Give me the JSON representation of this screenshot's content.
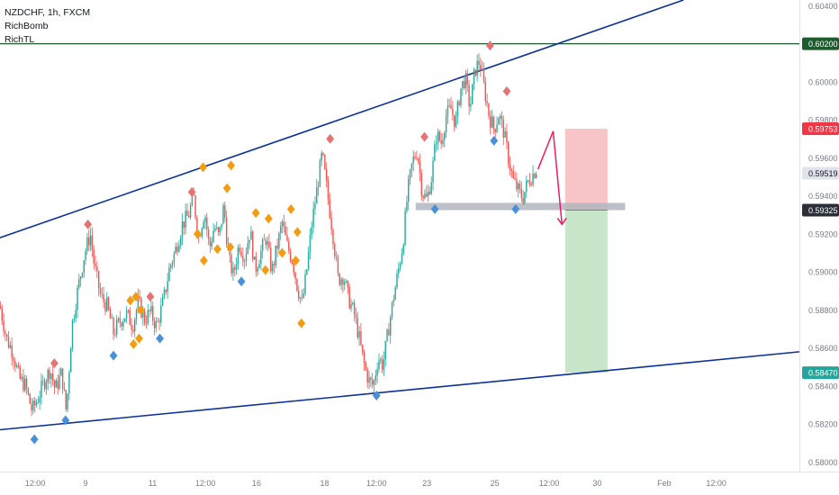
{
  "legend": {
    "symbol_line": "NZDCHF, 1h, FXCM",
    "indicators": [
      "RichBomb",
      "RichTL"
    ]
  },
  "chart_data": {
    "type": "candlestick",
    "symbol": "NZDCHF",
    "timeframe": "1h",
    "source": "FXCM",
    "y_range": [
      0.5795,
      0.6043
    ],
    "x_range": [
      0,
      1000
    ],
    "y_ticks": [
      {
        "value": 0.604,
        "label": "0.60400"
      },
      {
        "value": 0.602,
        "label": "0.60200"
      },
      {
        "value": 0.6,
        "label": "0.60000"
      },
      {
        "value": 0.598,
        "label": "0.59800"
      },
      {
        "value": 0.596,
        "label": "0.59600"
      },
      {
        "value": 0.594,
        "label": "0.59400"
      },
      {
        "value": 0.592,
        "label": "0.59200"
      },
      {
        "value": 0.59,
        "label": "0.59000"
      },
      {
        "value": 0.588,
        "label": "0.58800"
      },
      {
        "value": 0.586,
        "label": "0.58600"
      },
      {
        "value": 0.584,
        "label": "0.58400"
      },
      {
        "value": 0.582,
        "label": "0.58200"
      },
      {
        "value": 0.58,
        "label": "0.58000"
      }
    ],
    "x_ticks": [
      {
        "x": 44,
        "label": "12:00"
      },
      {
        "x": 107,
        "label": "9"
      },
      {
        "x": 191,
        "label": "11"
      },
      {
        "x": 257,
        "label": "12:00"
      },
      {
        "x": 321,
        "label": "16"
      },
      {
        "x": 406,
        "label": "18"
      },
      {
        "x": 471,
        "label": "12:00"
      },
      {
        "x": 534,
        "label": "23"
      },
      {
        "x": 619,
        "label": "25"
      },
      {
        "x": 687,
        "label": "12:00"
      },
      {
        "x": 747,
        "label": "30"
      },
      {
        "x": 831,
        "label": "Feb"
      },
      {
        "x": 896,
        "label": "12:00"
      }
    ],
    "price_tags": [
      {
        "value": 0.602,
        "label": "0.60200",
        "color": "#1e5c2e"
      },
      {
        "value": 0.59753,
        "label": "0.59753",
        "color": "#f23645"
      },
      {
        "value": 0.59519,
        "label": "0.59519",
        "color": "#e0e3eb"
      },
      {
        "value": 0.59325,
        "label": "0.59325",
        "color": "#2a2e39"
      },
      {
        "value": 0.5847,
        "label": "0.58470",
        "color": "#26a69a"
      }
    ],
    "horizontal_line": {
      "value": 0.602,
      "color": "#1e5c2e"
    },
    "trend_lines": [
      {
        "from": [
          0,
          0.5918
        ],
        "to": [
          855,
          0.6043
        ],
        "color": "#0c3299"
      },
      {
        "from": [
          0,
          0.5817
        ],
        "to": [
          1000,
          0.5858
        ],
        "color": "#0c3299"
      }
    ],
    "support_zone": {
      "x1": 520,
      "x2": 782,
      "y1": 0.59363,
      "y2": 0.59325,
      "color": "#b2b5be"
    },
    "position": {
      "x1": 707,
      "x2": 760,
      "entry": 0.59325,
      "stop": 0.59753,
      "target": 0.5847,
      "loss_color": "#f7c5c8",
      "profit_color": "#c8e6c9"
    },
    "projection_path": [
      [
        673,
        0.5954
      ],
      [
        692,
        0.5974
      ],
      [
        703,
        0.5925
      ]
    ],
    "projection_color": "#e91e63",
    "path_points": [
      [
        0,
        0.5882
      ],
      [
        8,
        0.5865
      ],
      [
        16,
        0.5858
      ],
      [
        24,
        0.5844
      ],
      [
        32,
        0.584
      ],
      [
        40,
        0.5827
      ],
      [
        46,
        0.5832
      ],
      [
        55,
        0.5842
      ],
      [
        63,
        0.5849
      ],
      [
        69,
        0.5838
      ],
      [
        77,
        0.5847
      ],
      [
        83,
        0.5826
      ],
      [
        90,
        0.5872
      ],
      [
        97,
        0.589
      ],
      [
        106,
        0.591
      ],
      [
        113,
        0.592
      ],
      [
        118,
        0.5903
      ],
      [
        126,
        0.5887
      ],
      [
        134,
        0.5882
      ],
      [
        142,
        0.5868
      ],
      [
        150,
        0.5874
      ],
      [
        158,
        0.5878
      ],
      [
        166,
        0.5872
      ],
      [
        173,
        0.5884
      ],
      [
        181,
        0.5875
      ],
      [
        188,
        0.5879
      ],
      [
        196,
        0.5871
      ],
      [
        205,
        0.5886
      ],
      [
        212,
        0.5902
      ],
      [
        220,
        0.5912
      ],
      [
        228,
        0.5925
      ],
      [
        236,
        0.593
      ],
      [
        242,
        0.594
      ],
      [
        248,
        0.5918
      ],
      [
        256,
        0.5932
      ],
      [
        262,
        0.5912
      ],
      [
        268,
        0.5924
      ],
      [
        274,
        0.5918
      ],
      [
        280,
        0.5935
      ],
      [
        286,
        0.5907
      ],
      [
        292,
        0.5898
      ],
      [
        299,
        0.5915
      ],
      [
        306,
        0.5908
      ],
      [
        313,
        0.5922
      ],
      [
        319,
        0.5901
      ],
      [
        326,
        0.591
      ],
      [
        333,
        0.5918
      ],
      [
        340,
        0.59
      ],
      [
        347,
        0.5914
      ],
      [
        353,
        0.5926
      ],
      [
        359,
        0.5914
      ],
      [
        366,
        0.5906
      ],
      [
        372,
        0.5892
      ],
      [
        378,
        0.5883
      ],
      [
        384,
        0.5902
      ],
      [
        390,
        0.5925
      ],
      [
        397,
        0.5945
      ],
      [
        403,
        0.5962
      ],
      [
        410,
        0.594
      ],
      [
        417,
        0.5918
      ],
      [
        423,
        0.5896
      ],
      [
        430,
        0.5898
      ],
      [
        436,
        0.5886
      ],
      [
        443,
        0.5878
      ],
      [
        449,
        0.5866
      ],
      [
        455,
        0.5852
      ],
      [
        461,
        0.5843
      ],
      [
        467,
        0.584
      ],
      [
        473,
        0.5855
      ],
      [
        479,
        0.5851
      ],
      [
        486,
        0.587
      ],
      [
        492,
        0.5886
      ],
      [
        498,
        0.59
      ],
      [
        504,
        0.5915
      ],
      [
        510,
        0.5942
      ],
      [
        516,
        0.5958
      ],
      [
        522,
        0.5964
      ],
      [
        528,
        0.5942
      ],
      [
        534,
        0.5938
      ],
      [
        540,
        0.595
      ],
      [
        546,
        0.5972
      ],
      [
        552,
        0.5968
      ],
      [
        558,
        0.5982
      ],
      [
        564,
        0.5986
      ],
      [
        570,
        0.5978
      ],
      [
        576,
        0.5996
      ],
      [
        582,
        0.6002
      ],
      [
        588,
        0.5986
      ],
      [
        594,
        0.6006
      ],
      [
        600,
        0.6011
      ],
      [
        606,
        0.5996
      ],
      [
        612,
        0.5982
      ],
      [
        618,
        0.5975
      ],
      [
        624,
        0.5983
      ],
      [
        630,
        0.5974
      ],
      [
        636,
        0.596
      ],
      [
        642,
        0.5948
      ],
      [
        648,
        0.5943
      ],
      [
        654,
        0.5939
      ],
      [
        660,
        0.5947
      ],
      [
        666,
        0.5951
      ],
      [
        672,
        0.5955
      ]
    ],
    "markers": [
      {
        "x": 43,
        "y": 0.5812,
        "kind": "low",
        "color": "#4a90d9"
      },
      {
        "x": 82,
        "y": 0.5822,
        "kind": "low",
        "color": "#4a90d9"
      },
      {
        "x": 68,
        "y": 0.5852,
        "kind": "high",
        "color": "#e57373"
      },
      {
        "x": 110,
        "y": 0.5925,
        "kind": "high",
        "color": "#e57373"
      },
      {
        "x": 142,
        "y": 0.5856,
        "kind": "low",
        "color": "#4a90d9"
      },
      {
        "x": 188,
        "y": 0.5887,
        "kind": "high",
        "color": "#e57373"
      },
      {
        "x": 200,
        "y": 0.5865,
        "kind": "low",
        "color": "#4a90d9"
      },
      {
        "x": 163,
        "y": 0.5885,
        "kind": "mid",
        "color": "#f39c12"
      },
      {
        "x": 170,
        "y": 0.5887,
        "kind": "mid",
        "color": "#f39c12"
      },
      {
        "x": 176,
        "y": 0.588,
        "kind": "mid",
        "color": "#f39c12"
      },
      {
        "x": 167,
        "y": 0.5862,
        "kind": "mid",
        "color": "#f39c12"
      },
      {
        "x": 174,
        "y": 0.5865,
        "kind": "mid",
        "color": "#f39c12"
      },
      {
        "x": 240,
        "y": 0.5942,
        "kind": "high",
        "color": "#e57373"
      },
      {
        "x": 254,
        "y": 0.5955,
        "kind": "mid",
        "color": "#f39c12"
      },
      {
        "x": 284,
        "y": 0.5944,
        "kind": "mid",
        "color": "#f39c12"
      },
      {
        "x": 289,
        "y": 0.5956,
        "kind": "mid",
        "color": "#f39c12"
      },
      {
        "x": 247,
        "y": 0.592,
        "kind": "mid",
        "color": "#f39c12"
      },
      {
        "x": 255,
        "y": 0.5906,
        "kind": "mid",
        "color": "#f39c12"
      },
      {
        "x": 272,
        "y": 0.5912,
        "kind": "mid",
        "color": "#f39c12"
      },
      {
        "x": 288,
        "y": 0.5913,
        "kind": "mid",
        "color": "#f39c12"
      },
      {
        "x": 302,
        "y": 0.5895,
        "kind": "low",
        "color": "#4a90d9"
      },
      {
        "x": 320,
        "y": 0.5931,
        "kind": "mid",
        "color": "#f39c12"
      },
      {
        "x": 336,
        "y": 0.5928,
        "kind": "mid",
        "color": "#f39c12"
      },
      {
        "x": 332,
        "y": 0.5901,
        "kind": "mid",
        "color": "#f39c12"
      },
      {
        "x": 353,
        "y": 0.591,
        "kind": "mid",
        "color": "#f39c12"
      },
      {
        "x": 364,
        "y": 0.5933,
        "kind": "mid",
        "color": "#f39c12"
      },
      {
        "x": 372,
        "y": 0.5921,
        "kind": "mid",
        "color": "#f39c12"
      },
      {
        "x": 370,
        "y": 0.5906,
        "kind": "mid",
        "color": "#f39c12"
      },
      {
        "x": 377,
        "y": 0.5873,
        "kind": "mid",
        "color": "#f39c12"
      },
      {
        "x": 413,
        "y": 0.597,
        "kind": "high",
        "color": "#e57373"
      },
      {
        "x": 471,
        "y": 0.5835,
        "kind": "low",
        "color": "#4a90d9"
      },
      {
        "x": 531,
        "y": 0.5971,
        "kind": "high",
        "color": "#e57373"
      },
      {
        "x": 544,
        "y": 0.5933,
        "kind": "low",
        "color": "#4a90d9"
      },
      {
        "x": 613,
        "y": 0.6019,
        "kind": "high",
        "color": "#e57373"
      },
      {
        "x": 634,
        "y": 0.5995,
        "kind": "high",
        "color": "#e57373"
      },
      {
        "x": 618,
        "y": 0.5969,
        "kind": "low",
        "color": "#4a90d9"
      },
      {
        "x": 645,
        "y": 0.5933,
        "kind": "low",
        "color": "#4a90d9"
      }
    ]
  }
}
